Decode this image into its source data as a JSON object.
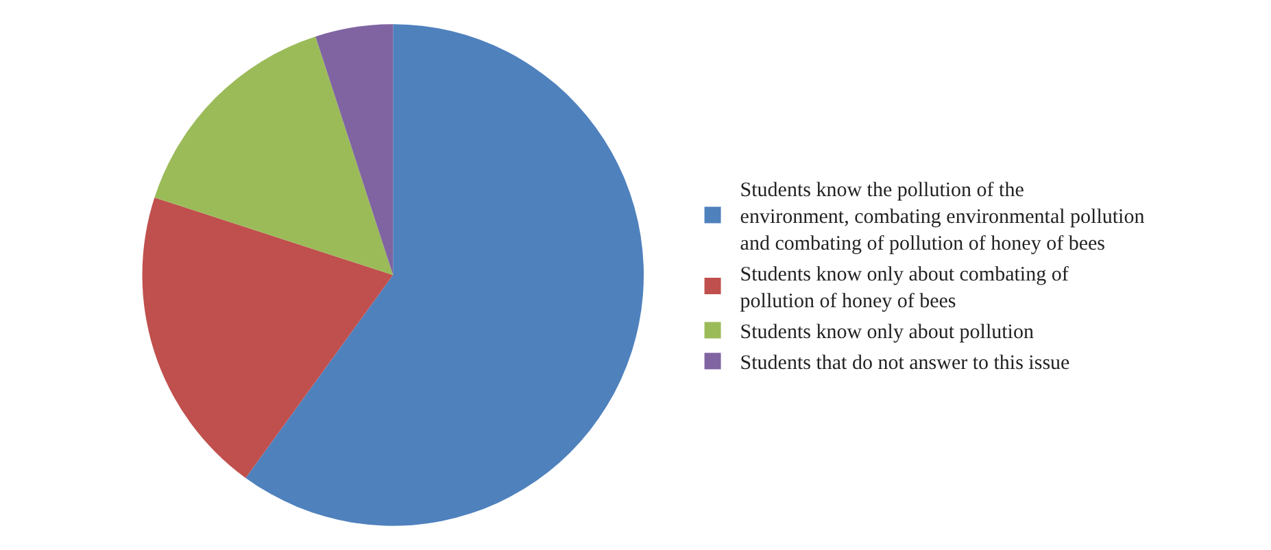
{
  "chart_data": {
    "type": "pie",
    "categories": [
      "Students know the pollution of the environment, combating environmental pollution and combating of pollution of honey of bees",
      "Students know only about combating of pollution of honey of bees",
      "Students know only about pollution",
      "Students that do not answer to this issue"
    ],
    "values": [
      60,
      20,
      15,
      5
    ],
    "colors": [
      "#4f81bd",
      "#c0504d",
      "#9bbb59",
      "#8064a2"
    ],
    "legend": "right"
  }
}
